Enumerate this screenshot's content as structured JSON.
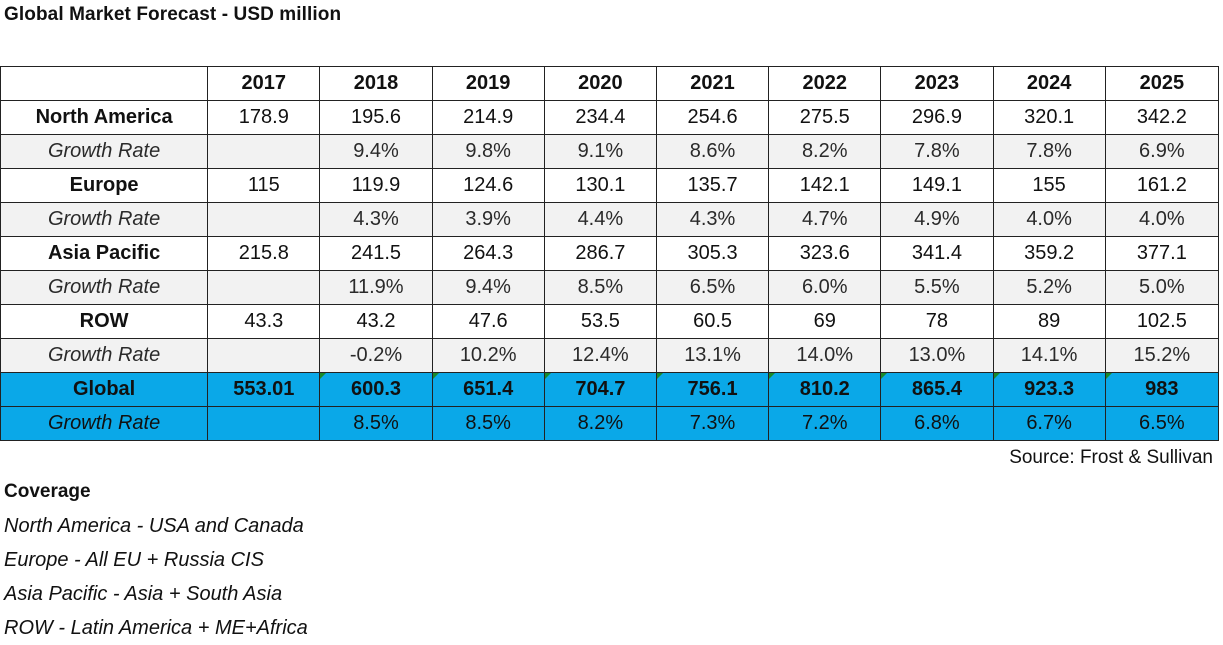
{
  "title": "Global Market Forecast - USD million",
  "table": {
    "years": [
      "2017",
      "2018",
      "2019",
      "2020",
      "2021",
      "2022",
      "2023",
      "2024",
      "2025"
    ],
    "rows": [
      {
        "kind": "main",
        "label": "North America",
        "values": [
          "178.9",
          "195.6",
          "214.9",
          "234.4",
          "254.6",
          "275.5",
          "296.9",
          "320.1",
          "342.2"
        ]
      },
      {
        "kind": "growth",
        "label": "Growth Rate",
        "values": [
          "",
          "9.4%",
          "9.8%",
          "9.1%",
          "8.6%",
          "8.2%",
          "7.8%",
          "7.8%",
          "6.9%"
        ]
      },
      {
        "kind": "main",
        "label": "Europe",
        "values": [
          "115",
          "119.9",
          "124.6",
          "130.1",
          "135.7",
          "142.1",
          "149.1",
          "155",
          "161.2"
        ]
      },
      {
        "kind": "growth",
        "label": "Growth Rate",
        "values": [
          "",
          "4.3%",
          "3.9%",
          "4.4%",
          "4.3%",
          "4.7%",
          "4.9%",
          "4.0%",
          "4.0%"
        ]
      },
      {
        "kind": "main",
        "label": "Asia Pacific",
        "values": [
          "215.8",
          "241.5",
          "264.3",
          "286.7",
          "305.3",
          "323.6",
          "341.4",
          "359.2",
          "377.1"
        ]
      },
      {
        "kind": "growth",
        "label": "Growth Rate",
        "values": [
          "",
          "11.9%",
          "9.4%",
          "8.5%",
          "6.5%",
          "6.0%",
          "5.5%",
          "5.2%",
          "5.0%"
        ]
      },
      {
        "kind": "main",
        "label": "ROW",
        "values": [
          "43.3",
          "43.2",
          "47.6",
          "53.5",
          "60.5",
          "69",
          "78",
          "89",
          "102.5"
        ]
      },
      {
        "kind": "growth",
        "label": "Growth Rate",
        "values": [
          "",
          "-0.2%",
          "10.2%",
          "12.4%",
          "13.1%",
          "14.0%",
          "13.0%",
          "14.1%",
          "15.2%"
        ]
      },
      {
        "kind": "global",
        "label": "Global",
        "values": [
          "553.01",
          "600.3",
          "651.4",
          "704.7",
          "756.1",
          "810.2",
          "865.4",
          "923.3",
          "983"
        ]
      },
      {
        "kind": "global-growth",
        "label": "Growth Rate",
        "values": [
          "",
          "8.5%",
          "8.5%",
          "8.2%",
          "7.3%",
          "7.2%",
          "6.8%",
          "6.7%",
          "6.5%"
        ]
      }
    ]
  },
  "source": "Source: Frost & Sullivan",
  "coverage": {
    "title": "Coverage",
    "items": [
      "North America - USA and Canada",
      "Europe - All EU + Russia CIS",
      "Asia Pacific - Asia + South Asia",
      "ROW - Latin America + ME+Africa"
    ]
  },
  "colors": {
    "global_row": "#0aa8e8",
    "growth_row": "#f2f2f2",
    "cell_tick": "#1a8a2a"
  }
}
